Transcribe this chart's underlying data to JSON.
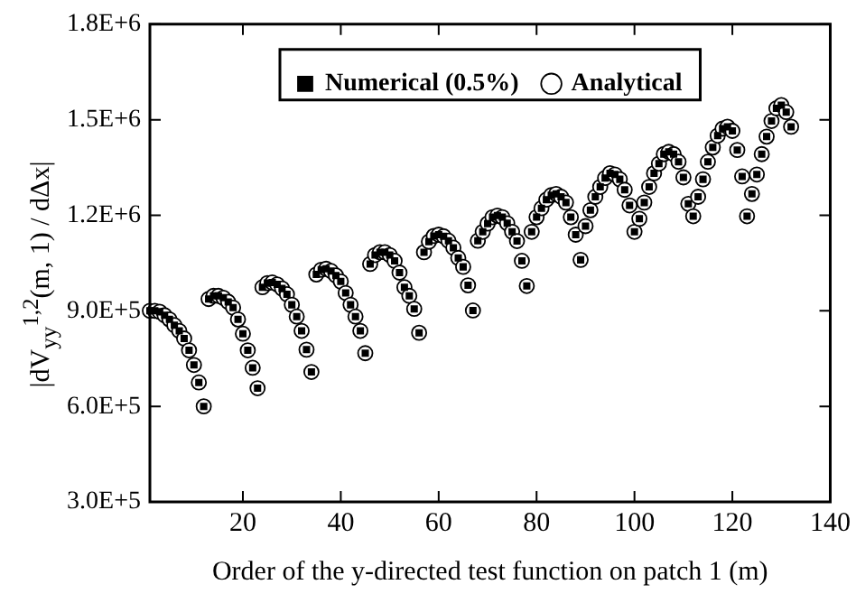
{
  "chart_data": {
    "type": "scatter",
    "xlabel": "Order of the y-directed test function on patch 1 (m)",
    "ylabel": "|dV$_{yy}$$^{1,2}$(m, 1) / dΔx|",
    "x": [
      1,
      2,
      3,
      4,
      5,
      6,
      7,
      8,
      9,
      10,
      11,
      12,
      13,
      14,
      15,
      16,
      17,
      18,
      19,
      20,
      21,
      22,
      23,
      24,
      25,
      26,
      27,
      28,
      29,
      30,
      31,
      32,
      33,
      34,
      35,
      36,
      37,
      38,
      39,
      40,
      41,
      42,
      43,
      44,
      45,
      46,
      47,
      48,
      49,
      50,
      51,
      52,
      53,
      54,
      55,
      56,
      57,
      58,
      59,
      60,
      61,
      62,
      63,
      64,
      65,
      66,
      67,
      68,
      69,
      70,
      71,
      72,
      73,
      74,
      75,
      76,
      77,
      78,
      79,
      80,
      81,
      82,
      83,
      84,
      85,
      86,
      87,
      88,
      89,
      90,
      91,
      92,
      93,
      94,
      95,
      96,
      97,
      98,
      99,
      100,
      101,
      102,
      103,
      104,
      105,
      106,
      107,
      108,
      109,
      110,
      111,
      112,
      113,
      114,
      115,
      116,
      117,
      118,
      119,
      120,
      121,
      122,
      123,
      124,
      125,
      126,
      127,
      128,
      129,
      130,
      131,
      132
    ],
    "series": [
      {
        "name": "Analytical",
        "color": "#000000",
        "marker": "circle",
        "values": [
          900000,
          900000,
          897000,
          886000,
          873000,
          855000,
          837000,
          813000,
          776000,
          730000,
          675000,
          600000,
          937000,
          947000,
          947000,
          941000,
          928000,
          910000,
          873000,
          828000,
          776000,
          721000,
          657000,
          974000,
          987000,
          989000,
          983000,
          970000,
          952000,
          919000,
          882000,
          837000,
          778000,
          708000,
          1014000,
          1029000,
          1032000,
          1025000,
          1011000,
          992000,
          956000,
          919000,
          882000,
          837000,
          767000,
          1047000,
          1075000,
          1084000,
          1084000,
          1075000,
          1057000,
          1020000,
          974000,
          947000,
          906000,
          831000,
          1084000,
          1117000,
          1135000,
          1139000,
          1134000,
          1120000,
          1098000,
          1066000,
          1038000,
          980000,
          901000,
          1120000,
          1148000,
          1174000,
          1194000,
          1199000,
          1194000,
          1175000,
          1148000,
          1119000,
          1057000,
          978000,
          1148000,
          1194000,
          1222000,
          1249000,
          1263000,
          1267000,
          1258000,
          1240000,
          1194000,
          1139000,
          1060000,
          1166000,
          1216000,
          1258000,
          1289000,
          1317000,
          1332000,
          1328000,
          1313000,
          1280000,
          1231000,
          1148000,
          1189000,
          1240000,
          1289000,
          1332000,
          1362000,
          1392000,
          1399000,
          1392000,
          1368000,
          1319000,
          1236000,
          1197000,
          1258000,
          1313000,
          1368000,
          1413000,
          1450000,
          1472000,
          1478000,
          1465000,
          1405000,
          1322000,
          1197000,
          1267000,
          1328000,
          1392000,
          1447000,
          1496000,
          1536000,
          1546000,
          1524000,
          1478000
        ]
      },
      {
        "name": "Numerical (0.5%)",
        "color": "#000000",
        "marker": "square",
        "values": [
          900000,
          900000,
          897000,
          886000,
          873000,
          855000,
          837000,
          813000,
          776000,
          730000,
          675000,
          600000,
          937000,
          947000,
          947000,
          941000,
          928000,
          910000,
          873000,
          828000,
          776000,
          721000,
          657000,
          974000,
          987000,
          989000,
          983000,
          970000,
          952000,
          919000,
          882000,
          837000,
          778000,
          708000,
          1014000,
          1029000,
          1032000,
          1025000,
          1011000,
          992000,
          956000,
          919000,
          882000,
          837000,
          767000,
          1047000,
          1075000,
          1084000,
          1084000,
          1075000,
          1057000,
          1020000,
          974000,
          947000,
          906000,
          831000,
          1084000,
          1117000,
          1135000,
          1139000,
          1134000,
          1120000,
          1098000,
          1066000,
          1038000,
          980000,
          901000,
          1120000,
          1148000,
          1174000,
          1194000,
          1199000,
          1194000,
          1175000,
          1148000,
          1119000,
          1057000,
          978000,
          1148000,
          1194000,
          1222000,
          1249000,
          1263000,
          1267000,
          1258000,
          1240000,
          1194000,
          1139000,
          1060000,
          1166000,
          1216000,
          1258000,
          1289000,
          1317000,
          1332000,
          1328000,
          1313000,
          1280000,
          1231000,
          1148000,
          1189000,
          1240000,
          1289000,
          1332000,
          1362000,
          1392000,
          1399000,
          1392000,
          1368000,
          1319000,
          1236000,
          1197000,
          1258000,
          1313000,
          1368000,
          1413000,
          1450000,
          1472000,
          1478000,
          1465000,
          1405000,
          1322000,
          1197000,
          1267000,
          1328000,
          1392000,
          1447000,
          1496000,
          1536000,
          1546000,
          1524000,
          1478000
        ]
      }
    ],
    "xlim": [
      1,
      140
    ],
    "xticks": [
      20,
      40,
      60,
      80,
      100,
      120,
      140
    ],
    "ylim": [
      300000,
      1800000
    ],
    "yticks": [
      {
        "value": 300000,
        "label": "3.0E+5"
      },
      {
        "value": 600000,
        "label": "6.0E+5"
      },
      {
        "value": 900000,
        "label": "9.0E+5"
      },
      {
        "value": 1200000,
        "label": "1.2E+6"
      },
      {
        "value": 1500000,
        "label": "1.5E+6"
      },
      {
        "value": 1800000,
        "label": "1.8E+6"
      }
    ],
    "grid": false,
    "legend": "top"
  }
}
